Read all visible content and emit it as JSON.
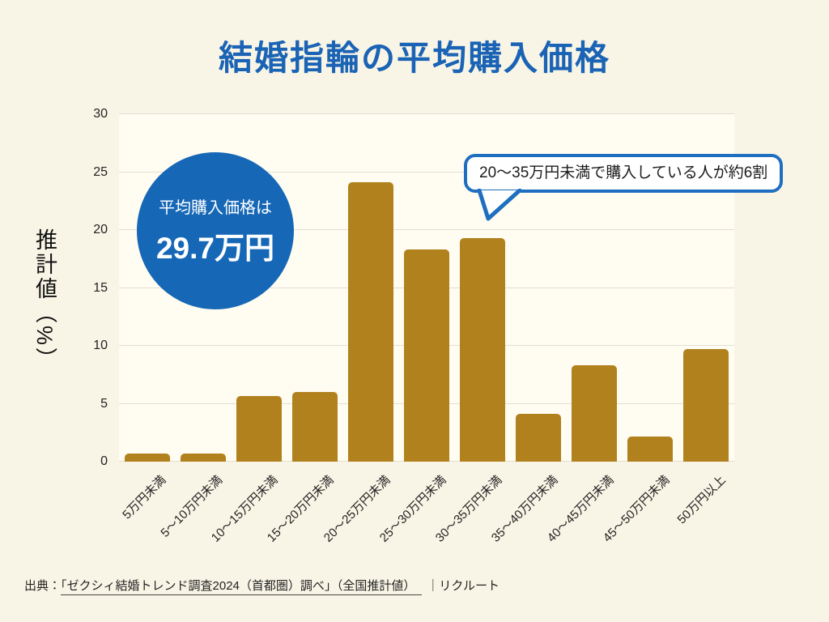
{
  "title": "結婚指輪の平均購入価格",
  "colors": {
    "background": "#f9f5e6",
    "plot_background": "#fffcf1",
    "grid": "#e2ded3",
    "bar": "#b1811e",
    "title_blue": "#1a63b5",
    "badge_blue": "#1668b7",
    "badge_text": "#ffffff",
    "bubble_border": "#1e6fc0",
    "bubble_background": "#ffffff",
    "text": "#222222"
  },
  "badge": {
    "line1": "平均購入価格は",
    "line2": "29.7万円"
  },
  "callout": {
    "text": "20〜35万円未満で購入している人が約6割"
  },
  "y_axis": {
    "label": "推計値（%）",
    "ticks": [
      0,
      5,
      10,
      15,
      20,
      25,
      30
    ]
  },
  "source": {
    "prefix": "出典：",
    "link": "「ゼクシィ結婚トレンド調査2024（首都圏）調べ」（全国推計値）",
    "suffix": "｜リクルート"
  },
  "chart_data": {
    "type": "bar",
    "title": "結婚指輪の平均購入価格",
    "categories": [
      "5万円未満",
      "5～10万円未満",
      "10～15万円未満",
      "15～20万円未満",
      "20～25万円未満",
      "25～30万円未満",
      "30～35万円未満",
      "35～40万円未満",
      "40～45万円未満",
      "45～50万円未満",
      "50万円以上"
    ],
    "values": [
      0.7,
      0.7,
      5.7,
      6.0,
      24.1,
      18.3,
      19.3,
      4.1,
      8.3,
      2.2,
      9.7
    ],
    "xlabel": "",
    "ylabel": "推計値（%）",
    "ylim": [
      0,
      30
    ],
    "grid": true,
    "legend": false,
    "bar_color": "#b1811e",
    "annotations": [
      "平均購入価格は29.7万円",
      "20〜35万円未満で購入している人が約6割"
    ]
  }
}
